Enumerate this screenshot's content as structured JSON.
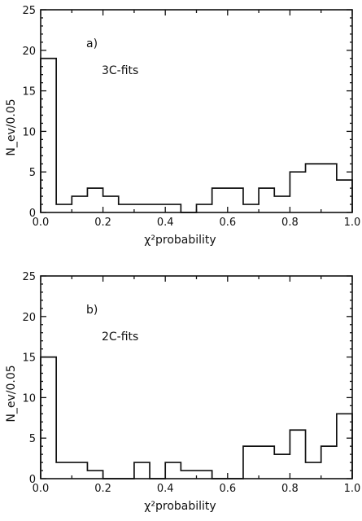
{
  "chart_data": [
    {
      "type": "histogram",
      "panel_label": "a)",
      "annotation": "3C-fits",
      "xlabel": "χ²probability",
      "ylabel": "N_ev/0.05",
      "xlim": [
        0.0,
        1.0
      ],
      "ylim": [
        0,
        25
      ],
      "xticks": [
        "0.0",
        "0.2",
        "0.4",
        "0.6",
        "0.8",
        "1.0"
      ],
      "yticks": [
        "0",
        "5",
        "10",
        "15",
        "20",
        "25"
      ],
      "bin_width": 0.05,
      "bin_edges": [
        0.0,
        0.05,
        0.1,
        0.15,
        0.2,
        0.25,
        0.3,
        0.35,
        0.4,
        0.45,
        0.5,
        0.55,
        0.6,
        0.65,
        0.7,
        0.75,
        0.8,
        0.85,
        0.9,
        0.95,
        1.0
      ],
      "values": [
        19,
        1,
        2,
        3,
        2,
        1,
        1,
        1,
        1,
        0,
        1,
        3,
        3,
        1,
        3,
        2,
        5,
        6,
        6,
        4
      ]
    },
    {
      "type": "histogram",
      "panel_label": "b)",
      "annotation": "2C-fits",
      "xlabel": "χ²probability",
      "ylabel": "N_ev/0.05",
      "xlim": [
        0.0,
        1.0
      ],
      "ylim": [
        0,
        25
      ],
      "xticks": [
        "0.0",
        "0.2",
        "0.4",
        "0.6",
        "0.8",
        "1.0"
      ],
      "yticks": [
        "0",
        "5",
        "10",
        "15",
        "20",
        "25"
      ],
      "bin_width": 0.05,
      "bin_edges": [
        0.0,
        0.05,
        0.1,
        0.15,
        0.2,
        0.25,
        0.3,
        0.35,
        0.4,
        0.45,
        0.5,
        0.55,
        0.6,
        0.65,
        0.7,
        0.75,
        0.8,
        0.85,
        0.9,
        0.95,
        1.0
      ],
      "values": [
        15,
        2,
        2,
        1,
        0,
        0,
        2,
        0,
        2,
        1,
        1,
        0,
        0,
        4,
        4,
        3,
        6,
        2,
        4,
        8
      ]
    }
  ]
}
